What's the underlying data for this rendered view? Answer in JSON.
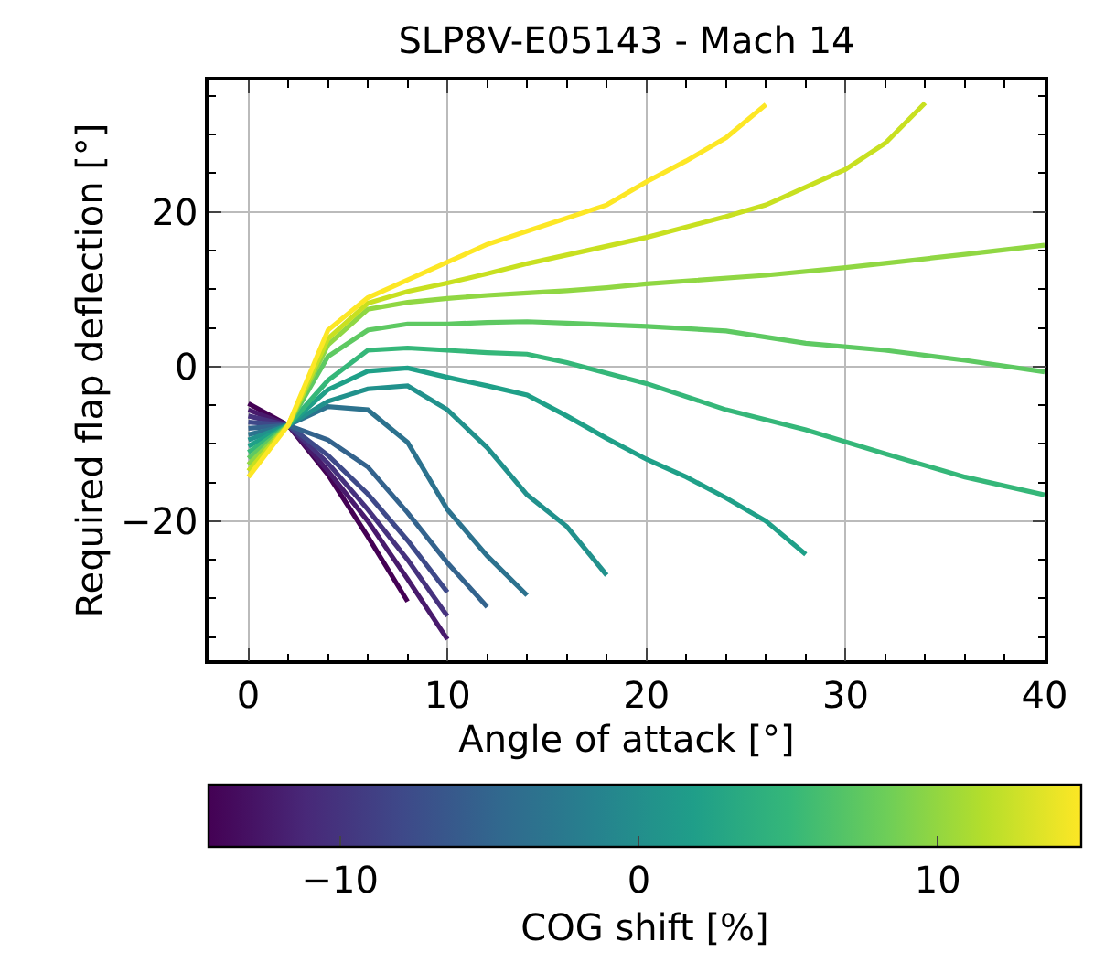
{
  "chart_data": {
    "type": "line",
    "title": "SLP8V-E05143 - Mach 14",
    "xlabel": "Angle of attack [°]",
    "ylabel": "Required flap deflection [°]",
    "clabel": "COG shift [%]",
    "xlim": [
      -2,
      40
    ],
    "xticks": [
      0,
      10,
      20,
      30,
      40
    ],
    "ylim": [
      -38,
      37
    ],
    "yticks": [
      -20,
      0,
      20
    ],
    "clim": [
      -14.4,
      14.8
    ],
    "cticks": [
      -10,
      0,
      10
    ],
    "grid": true,
    "marker": "none",
    "line_style": "solid",
    "series": [
      {
        "color": "#440154",
        "x": [
          0,
          2,
          4,
          6,
          8
        ],
        "values": [
          -4.8,
          -7.6,
          -14,
          -22,
          -30.4
        ]
      },
      {
        "color": "#481a6c",
        "x": [
          0,
          2,
          4,
          6,
          8,
          10
        ],
        "values": [
          -5.6,
          -7.6,
          -13.5,
          -20,
          -27.5,
          -35.3
        ]
      },
      {
        "color": "#46327e",
        "x": [
          0,
          2,
          4,
          6,
          8,
          10
        ],
        "values": [
          -6.4,
          -7.6,
          -12.5,
          -18.5,
          -25,
          -32.3
        ]
      },
      {
        "color": "#3e4989",
        "x": [
          0,
          2,
          4,
          6,
          8,
          10
        ],
        "values": [
          -7.2,
          -7.6,
          -11.5,
          -16.5,
          -22.5,
          -29.2
        ]
      },
      {
        "color": "#33638d",
        "x": [
          0,
          2,
          4,
          6,
          8,
          10,
          12
        ],
        "values": [
          -8,
          -7.6,
          -9.5,
          -13,
          -18.9,
          -25.4,
          -31.1
        ]
      },
      {
        "color": "#2c728e",
        "x": [
          0,
          2,
          4,
          6,
          8,
          10,
          12,
          14
        ],
        "values": [
          -8.8,
          -7.6,
          -5.2,
          -5.6,
          -9.8,
          -18.5,
          -24.5,
          -29.6
        ]
      },
      {
        "color": "#21918c",
        "x": [
          0,
          2,
          4,
          6,
          8,
          10,
          12,
          14,
          16,
          18
        ],
        "values": [
          -9.5,
          -7.6,
          -4.5,
          -2.9,
          -2.5,
          -5.6,
          -10.5,
          -16.6,
          -20.7,
          -27
        ]
      },
      {
        "color": "#1fa088",
        "x": [
          0,
          2,
          4,
          6,
          8,
          10,
          12,
          14,
          16,
          18,
          20,
          22,
          24,
          26,
          28
        ],
        "values": [
          -10.3,
          -7.6,
          -3,
          -0.6,
          -0.2,
          -1.4,
          -2.5,
          -3.7,
          -6.4,
          -9.3,
          -12,
          -14.3,
          -17,
          -20,
          -24.3
        ]
      },
      {
        "color": "#35b779",
        "x": [
          0,
          2,
          4,
          6,
          8,
          10,
          12,
          14,
          16,
          20,
          24,
          28,
          32,
          36,
          40
        ],
        "values": [
          -11.1,
          -7.6,
          -1.8,
          2.1,
          2.4,
          2.1,
          1.8,
          1.6,
          0.5,
          -2.2,
          -5.6,
          -8.2,
          -11.3,
          -14.3,
          -16.6
        ]
      },
      {
        "color": "#5ec962",
        "x": [
          0,
          2,
          4,
          6,
          8,
          10,
          12,
          14,
          16,
          20,
          24,
          28,
          32,
          36,
          40
        ],
        "values": [
          -11.9,
          -7.6,
          1.3,
          4.7,
          5.5,
          5.5,
          5.7,
          5.8,
          5.6,
          5.2,
          4.6,
          3,
          2.1,
          0.8,
          -0.7
        ]
      },
      {
        "color": "#90d743",
        "x": [
          0,
          2,
          4,
          6,
          8,
          10,
          12,
          14,
          16,
          18,
          20,
          26,
          30,
          36,
          40
        ],
        "values": [
          -12.7,
          -7.6,
          2.8,
          7.4,
          8.3,
          8.8,
          9.2,
          9.5,
          9.8,
          10.2,
          10.7,
          11.8,
          12.8,
          14.5,
          15.7
        ]
      },
      {
        "color": "#c8e020",
        "x": [
          0,
          2,
          4,
          6,
          8,
          10,
          12,
          14,
          20,
          24,
          26,
          30,
          32,
          34
        ],
        "values": [
          -13.5,
          -7.6,
          3.6,
          8.2,
          9.7,
          10.8,
          12,
          13.3,
          16.7,
          19.4,
          20.9,
          25.5,
          28.9,
          34.1
        ]
      },
      {
        "color": "#fde725",
        "x": [
          0,
          2,
          4,
          6,
          8,
          10,
          12,
          14,
          18,
          20,
          22,
          24,
          26
        ],
        "values": [
          -14.3,
          -7.6,
          4.7,
          8.9,
          11.2,
          13.5,
          15.8,
          17.5,
          20.9,
          23.9,
          26.6,
          29.6,
          33.9
        ]
      }
    ]
  }
}
